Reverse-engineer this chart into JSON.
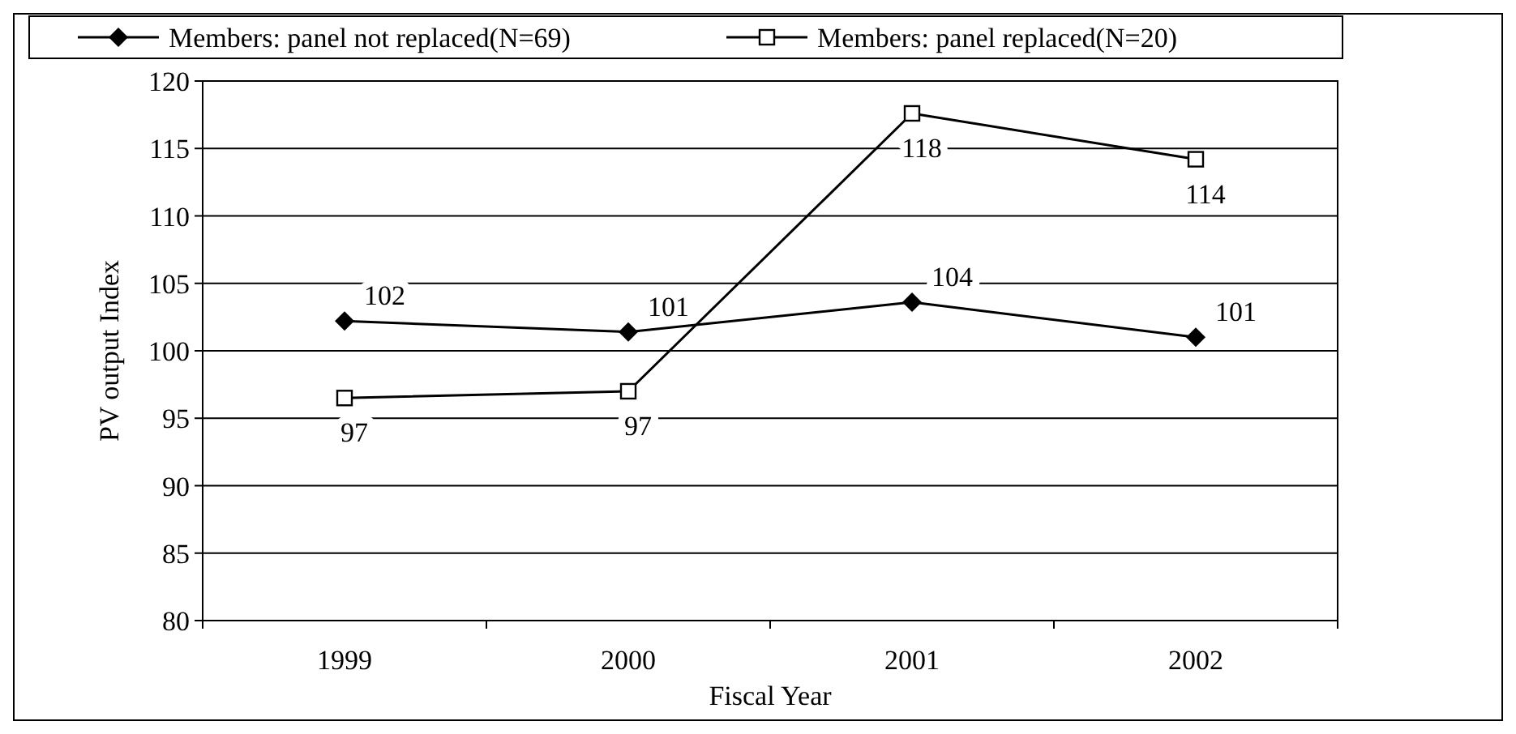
{
  "chart_data": {
    "type": "line",
    "xlabel": "Fiscal Year",
    "ylabel": "PV output Index",
    "categories": [
      "1999",
      "2000",
      "2001",
      "2002"
    ],
    "series": [
      {
        "name": "Members: panel not replaced(N=69)",
        "color": "#000000",
        "marker": "diamond",
        "values": [
          102.2,
          101.4,
          103.6,
          101.0
        ],
        "value_labels": [
          "102",
          "101",
          "104",
          "101"
        ]
      },
      {
        "name": "Members: panel replaced(N=20)",
        "color": "#000000",
        "marker": "square",
        "values": [
          96.5,
          97.0,
          117.6,
          114.2
        ],
        "value_labels": [
          "97",
          "97",
          "118",
          "114"
        ]
      }
    ],
    "ylim": [
      80,
      120
    ],
    "yticks": [
      80,
      85,
      90,
      95,
      100,
      105,
      110,
      115,
      120
    ],
    "grid": "y",
    "legend": "top",
    "line_style": "solid"
  }
}
